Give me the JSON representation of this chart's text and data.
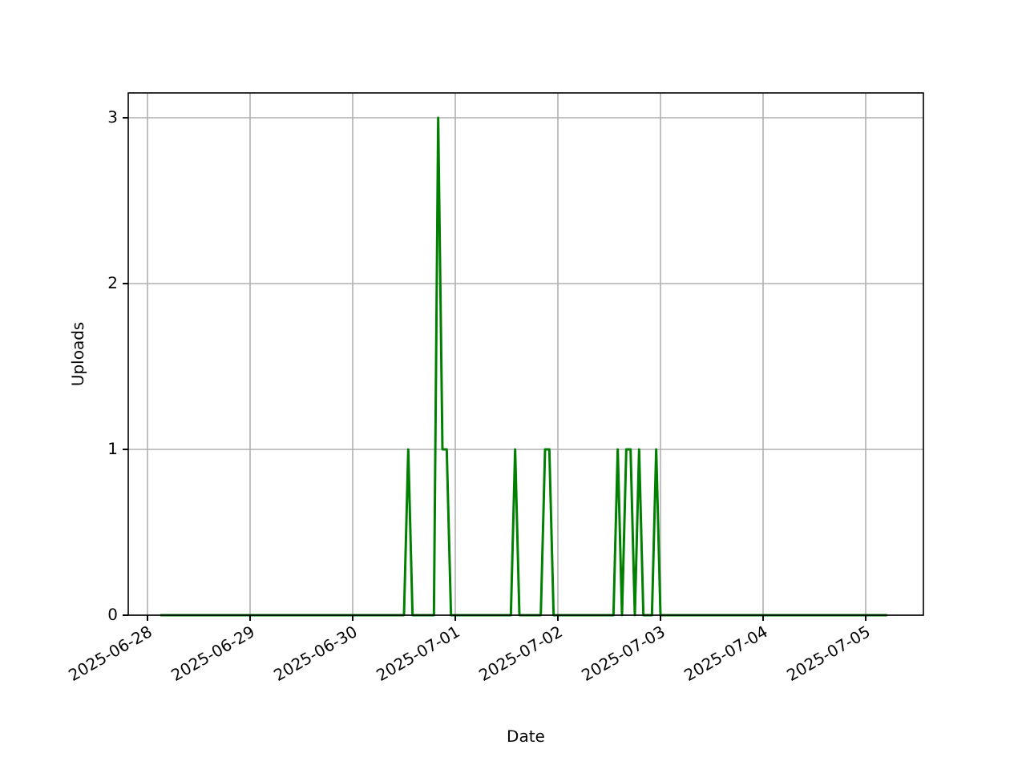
{
  "chart_data": {
    "type": "line",
    "xlabel": "Date",
    "ylabel": "Uploads",
    "x": [
      "2025-06-28T03:00",
      "2025-06-30T12:00",
      "2025-06-30T13:00",
      "2025-06-30T14:00",
      "2025-06-30T19:00",
      "2025-06-30T20:00",
      "2025-06-30T21:00",
      "2025-06-30T22:00",
      "2025-06-30T23:00",
      "2025-07-01T13:00",
      "2025-07-01T14:00",
      "2025-07-01T15:00",
      "2025-07-01T20:00",
      "2025-07-01T21:00",
      "2025-07-01T22:00",
      "2025-07-01T23:00",
      "2025-07-02T13:00",
      "2025-07-02T14:00",
      "2025-07-02T15:00",
      "2025-07-02T16:00",
      "2025-07-02T17:00",
      "2025-07-02T18:00",
      "2025-07-02T19:00",
      "2025-07-02T20:00",
      "2025-07-02T22:00",
      "2025-07-02T23:00",
      "2025-07-03T00:00",
      "2025-07-05T05:00"
    ],
    "series": [
      {
        "color": "#008000",
        "values": [
          0,
          0,
          1,
          0,
          0,
          3,
          1,
          1,
          0,
          0,
          1,
          0,
          0,
          1,
          1,
          0,
          0,
          1,
          0,
          1,
          1,
          0,
          1,
          0,
          0,
          1,
          0,
          0
        ]
      }
    ],
    "xlim": [
      "2025-06-27T19:30",
      "2025-07-05T13:30"
    ],
    "xticks": [
      "2025-06-28",
      "2025-06-29",
      "2025-06-30",
      "2025-07-01",
      "2025-07-02",
      "2025-07-03",
      "2025-07-04",
      "2025-07-05"
    ],
    "ylim": [
      0,
      3.15
    ],
    "yticks": [
      0,
      1,
      2,
      3
    ],
    "grid": true
  }
}
